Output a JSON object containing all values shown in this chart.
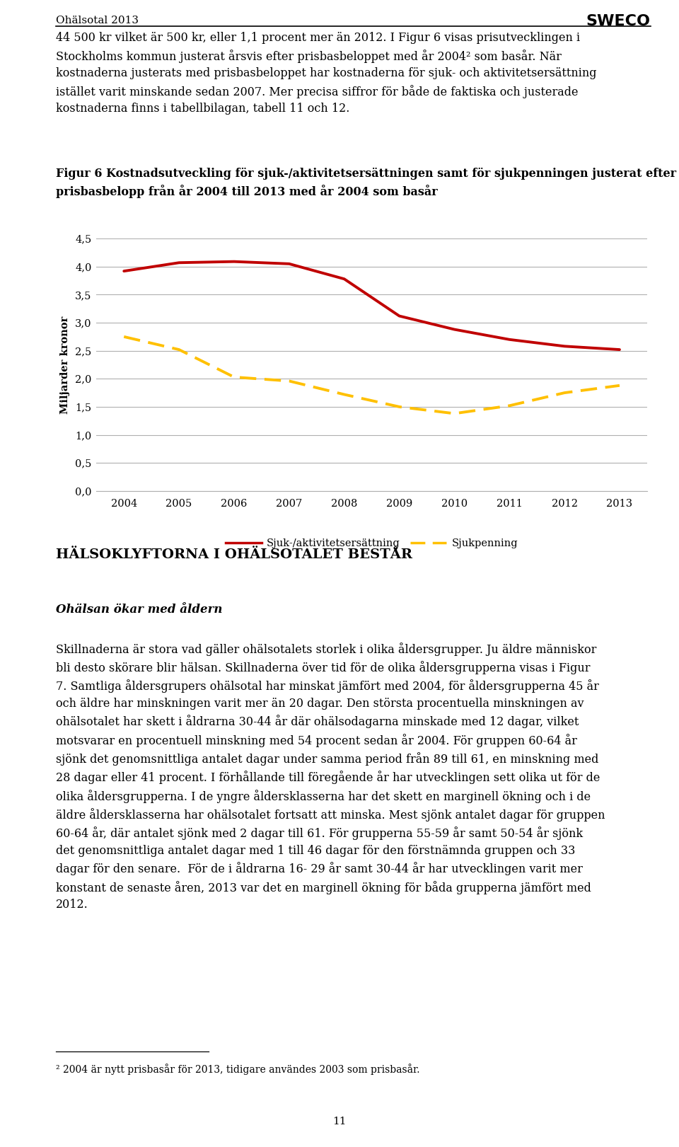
{
  "page_title": "Ohälsotal 2013",
  "body_text_1": "44 500 kr vilket är 500 kr, eller 1,1 procent mer än 2012. I Figur 6 visas prisutvecklingen i\nStockholms kommun justerat årsvis efter prisbasbeloppet med år 2004² som basår. När\nkostnaderna justerats med prisbasbeloppet har kostnaderna för sjuk- och aktivitetsersättning\nistället varit minskande sedan 2007. Mer precisa siffror för både de faktiska och justerade\nkostnaderna finns i tabellbilagan, tabell 11 och 12.",
  "fig_caption": "Figur 6 Kostnadsutveckling för sjuk-/aktivitetsersättningen samt för sjukpenningen justerat efter varje års\nprisbasbelopp från år 2004 till 2013 med år 2004 som basår",
  "ylabel": "Miljarder kronor",
  "years": [
    2004,
    2005,
    2006,
    2007,
    2008,
    2009,
    2010,
    2011,
    2012,
    2013
  ],
  "sjuk_akt": [
    3.92,
    4.07,
    4.09,
    4.05,
    3.78,
    3.12,
    2.88,
    2.7,
    2.58,
    2.52
  ],
  "sjukpenning": [
    2.75,
    2.52,
    2.03,
    1.96,
    1.72,
    1.5,
    1.38,
    1.52,
    1.75,
    1.88
  ],
  "line1_color": "#C00000",
  "line2_color": "#FFC000",
  "legend_label1": "Sjuk-/aktivitetsersättning",
  "legend_label2": "Sjukpenning",
  "ylim": [
    0.0,
    4.5
  ],
  "yticks": [
    0.0,
    0.5,
    1.0,
    1.5,
    2.0,
    2.5,
    3.0,
    3.5,
    4.0,
    4.5
  ],
  "background_color": "#ffffff",
  "grid_color": "#b0b0b0",
  "section_title": "HÄLSOKLYFTORNA I OHÄLSOTALET BESTÅR",
  "subsection_title": "Ohälsan ökar med åldern",
  "body_text_2": "Skillnaderna är stora vad gäller ohälsotalets storlek i olika åldersgrupper. Ju äldre människor\nbli desto skörare blir hälsan. Skillnaderna över tid för de olika åldersgrupperna visas i Figur\n7. Samtliga åldersgrupers ohälsotal har minskat jämfört med 2004, för åldersgrupperna 45 år\noch äldre har minskningen varit mer än 20 dagar. Den största procentuella minskningen av\nohälsotalet har skett i åldrarna 30-44 år där ohälsodagarna minskade med 12 dagar, vilket\nmotsvarar en procentuell minskning med 54 procent sedan år 2004. För gruppen 60-64 år\nsjönk det genomsnittliga antalet dagar under samma period från 89 till 61, en minskning med\n28 dagar eller 41 procent. I förhållande till föregående år har utvecklingen sett olika ut för de\nolika åldersgrupperna. I de yngre åldersklasserna har det skett en marginell ökning och i de\näldre åldersklasserna har ohälsotalet fortsatt att minska. Mest sjönk antalet dagar för gruppen\n60-64 år, där antalet sjönk med 2 dagar till 61. För grupperna 55-59 år samt 50-54 år sjönk\ndet genomsnittliga antalet dagar med 1 till 46 dagar för den förstnämnda gruppen och 33\ndagar för den senare.  För de i åldrarna 16- 29 år samt 30-44 år har utvecklingen varit mer\nkonstant de senaste åren, 2013 var det en marginell ökning för båda grupperna jämfört med\n2012.",
  "footnote": "² 2004 är nytt prisbasår för 2013, tidigare användes 2003 som prisbasår.",
  "page_number": "11",
  "title_fontsize": 11,
  "body_fontsize": 11.5,
  "caption_fontsize": 11.5,
  "tick_fontsize": 10.5,
  "axis_label_fontsize": 10.5,
  "section_fontsize": 14,
  "subsection_fontsize": 12,
  "footnote_fontsize": 10,
  "sweco_fontsize": 16
}
